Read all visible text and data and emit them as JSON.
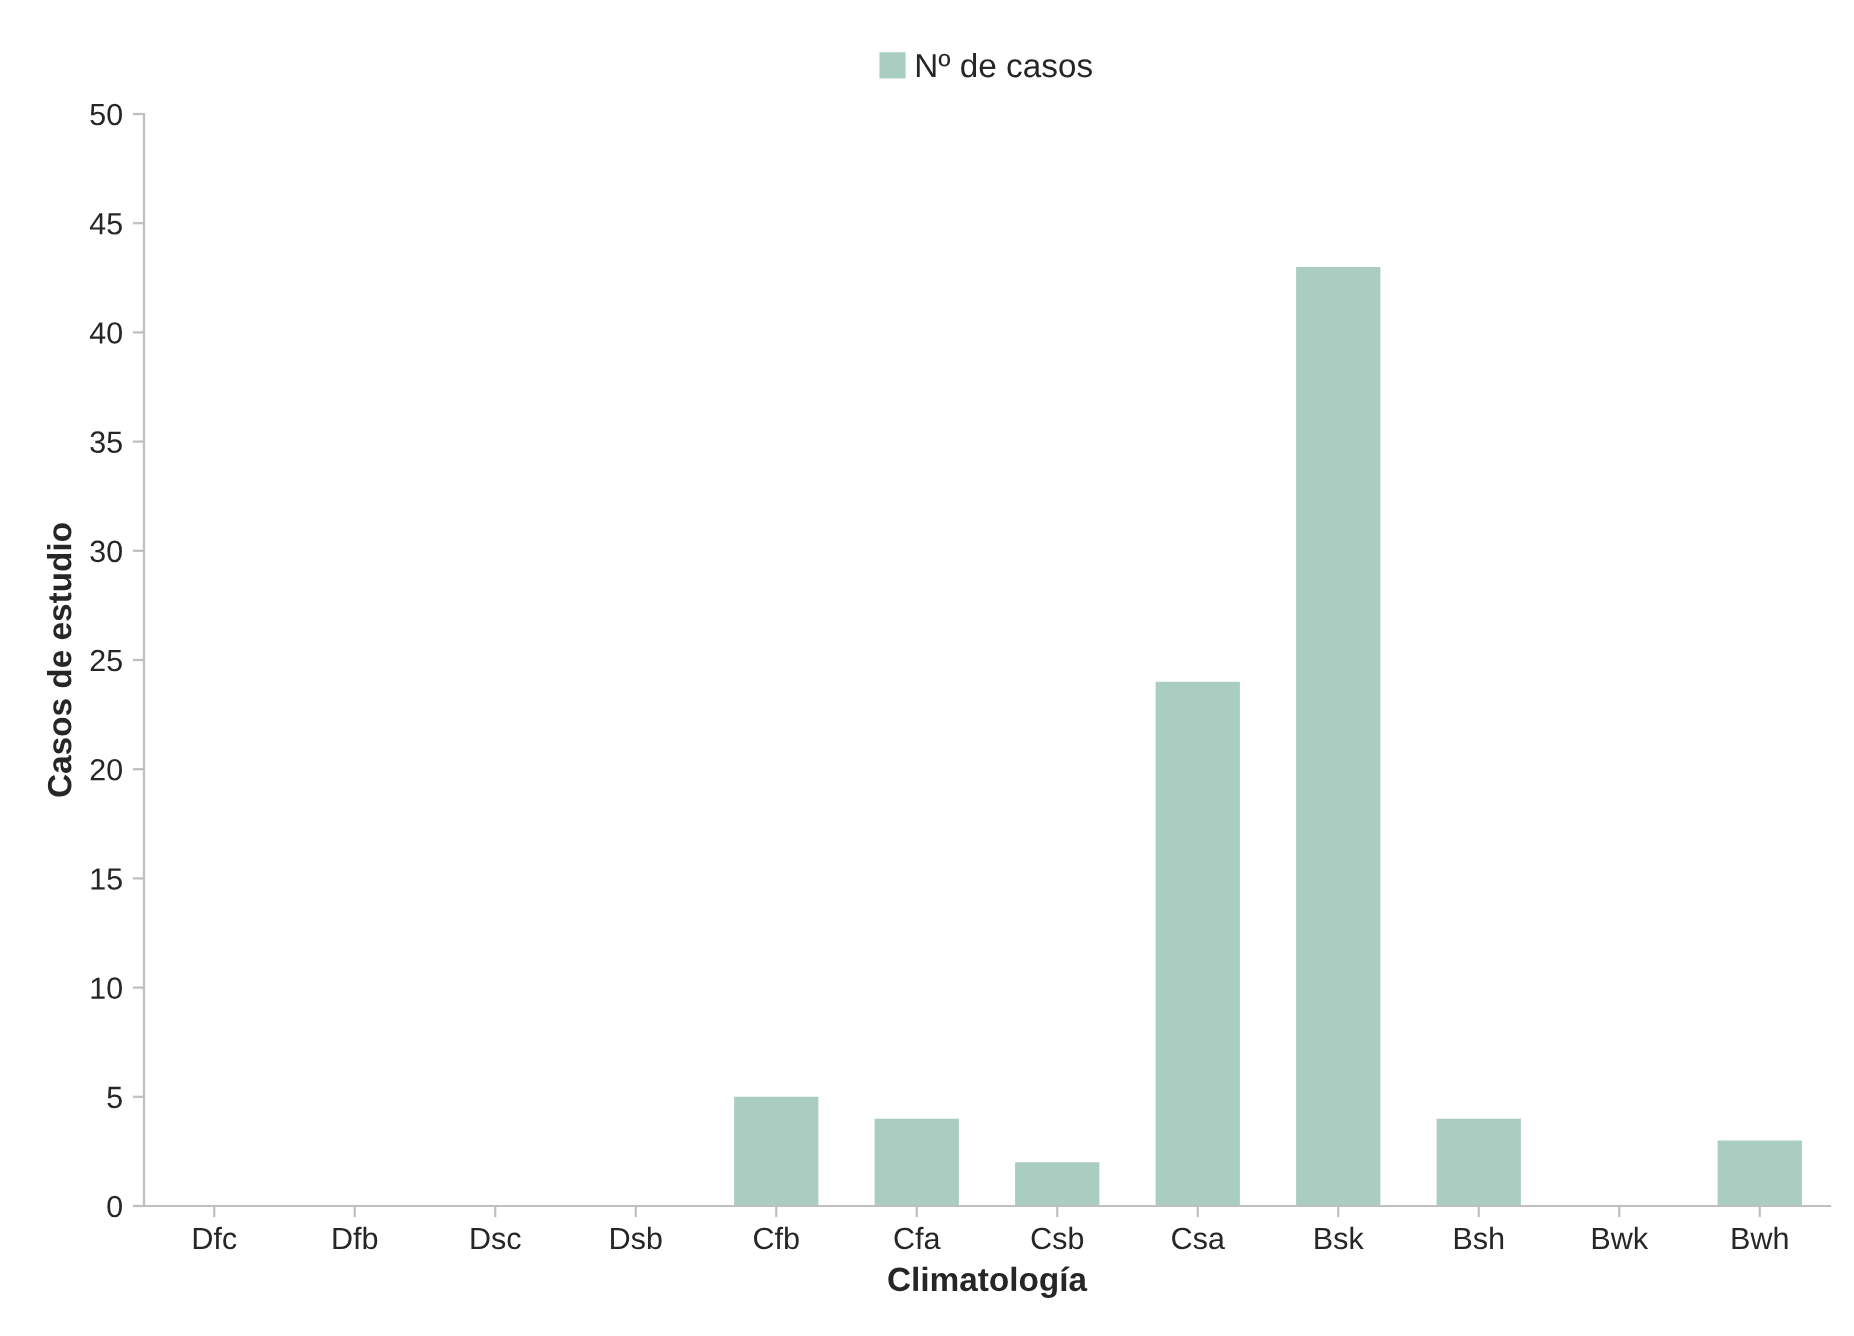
{
  "chart_data": {
    "type": "bar",
    "xlabel": "Climatología",
    "ylabel": "Casos de estudio",
    "categories": [
      "Dfc",
      "Dfb",
      "Dsc",
      "Dsb",
      "Cfb",
      "Cfa",
      "Csb",
      "Csa",
      "Bsk",
      "Bsh",
      "Bwk",
      "Bwh"
    ],
    "series": [
      {
        "name": "Nº de casos",
        "color": "#a9cdc1",
        "values": [
          0,
          0,
          0,
          0,
          5,
          4,
          2,
          24,
          43,
          4,
          0,
          3
        ]
      }
    ],
    "ylim": [
      0,
      50
    ],
    "yticks": [
      0,
      5,
      10,
      15,
      20,
      25,
      30,
      35,
      40,
      45,
      50
    ],
    "grid": false,
    "legend": "top"
  }
}
